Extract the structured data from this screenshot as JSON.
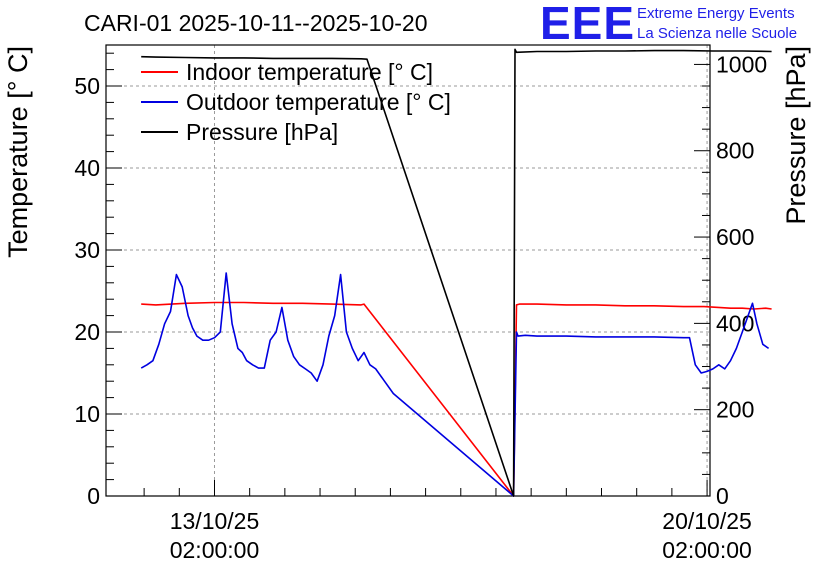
{
  "header": {
    "title": "CARI-01 2025-10-11--2025-10-20",
    "logo": "EEE",
    "logo_line1": "Extreme Energy Events",
    "logo_line2": "La Scienza nelle Scuole"
  },
  "colors": {
    "indoor": "#ff0000",
    "outdoor": "#0000e0",
    "pressure": "#000000",
    "logo": "#1f1fe8",
    "grid": "#9a9a9a"
  },
  "chart_data": {
    "type": "line",
    "ylabel": "Temperature [° C]",
    "y2label": "Pressure [hPa]",
    "xlabel": "",
    "ylim": [
      0,
      55
    ],
    "y2lim": [
      0,
      1045
    ],
    "xlim_hours": [
      -37,
      169
    ],
    "y_ticks": [
      0,
      10,
      20,
      30,
      40,
      50
    ],
    "y2_ticks": [
      0,
      200,
      400,
      600,
      800,
      1000
    ],
    "x_ticks": [
      {
        "hour": 0,
        "date": "13/10/25",
        "time": "02:00:00"
      },
      {
        "hour": 168,
        "date": "20/10/25",
        "time": "02:00:00"
      }
    ],
    "grid": true,
    "legend_position": "top-left",
    "series": [
      {
        "name": "Indoor temperature [° C]",
        "axis": "left",
        "x": [
          -25,
          -20,
          -10,
          0,
          10,
          20,
          30,
          40,
          50,
          51,
          102,
          103,
          104,
          110,
          120,
          130,
          140,
          150,
          160,
          167,
          176,
          180,
          184,
          188,
          190
        ],
        "y": [
          23.4,
          23.3,
          23.5,
          23.6,
          23.6,
          23.5,
          23.5,
          23.4,
          23.3,
          23.4,
          0.0,
          23.3,
          23.4,
          23.4,
          23.3,
          23.3,
          23.2,
          23.2,
          23.1,
          23.1,
          22.9,
          22.9,
          22.8,
          22.9,
          22.8
        ]
      },
      {
        "name": "Outdoor temperature [° C]",
        "axis": "left",
        "x": [
          -25,
          -23,
          -21,
          -19,
          -17,
          -15,
          -13,
          -11,
          -9,
          -7.5,
          -6,
          -4,
          -2,
          0,
          2,
          4,
          6,
          8,
          9.5,
          11,
          13,
          15,
          17,
          19,
          21,
          23,
          25,
          27,
          29,
          31,
          33,
          35,
          37,
          39,
          41,
          43,
          45,
          47,
          49,
          51,
          53,
          55,
          58,
          61,
          102,
          103,
          103.5,
          106,
          110,
          120,
          130,
          140,
          150,
          160,
          162,
          164,
          166,
          168,
          170,
          172,
          174,
          176,
          178,
          180,
          182,
          183.5,
          185,
          187,
          189
        ],
        "y": [
          15.6,
          16.0,
          16.5,
          18.5,
          21.0,
          22.5,
          27.0,
          25.5,
          22.0,
          20.5,
          19.5,
          19.0,
          19.0,
          19.3,
          20.0,
          27.2,
          21.0,
          18.0,
          17.5,
          16.5,
          16.0,
          15.6,
          15.6,
          19.0,
          20.0,
          23.0,
          19.0,
          17.0,
          16.0,
          15.5,
          15.0,
          14.0,
          16.0,
          19.5,
          22.0,
          27.0,
          20.0,
          18.0,
          16.5,
          17.5,
          16.0,
          15.5,
          14.0,
          12.5,
          0.0,
          20.0,
          19.5,
          19.6,
          19.5,
          19.5,
          19.4,
          19.4,
          19.4,
          19.3,
          19.3,
          16.0,
          15.0,
          15.2,
          15.5,
          16.0,
          15.5,
          16.5,
          18.0,
          20.0,
          22.0,
          23.5,
          21.0,
          18.5,
          18.0
        ]
      },
      {
        "name": "Pressure [hPa]",
        "axis": "right",
        "x": [
          -25,
          -20,
          -10,
          0,
          10,
          20,
          30,
          40,
          50,
          52,
          102,
          102.5,
          103,
          110,
          120,
          130,
          140,
          150,
          160,
          170,
          180,
          190
        ],
        "y": [
          1018,
          1017,
          1016,
          1015,
          1015,
          1014,
          1014,
          1014,
          1013,
          1012,
          0,
          1035,
          1028,
          1030,
          1030,
          1031,
          1031,
          1032,
          1032,
          1031,
          1031,
          1030
        ]
      }
    ]
  }
}
